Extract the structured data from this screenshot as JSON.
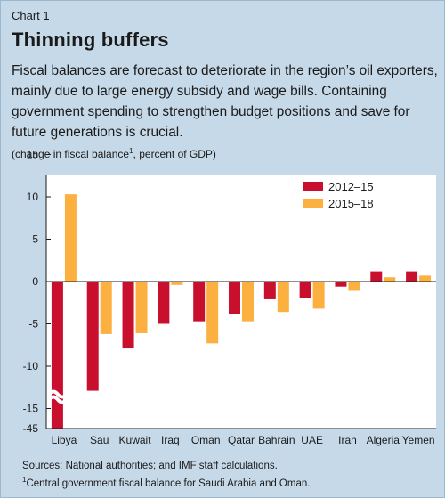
{
  "label": "Chart 1",
  "title": "Thinning buffers",
  "subtitle": "Fiscal balances are forecast to deteriorate in the region’s oil exporters, mainly due to large energy subsidy and wage bills. Containing government spending to strengthen budget positions and save for future generations is crucial.",
  "unit_note": {
    "before": "(change in fiscal balance",
    "marker": "1",
    "after": ", percent of GDP)"
  },
  "sources": "Sources: National authorities; and IMF staff calculations.",
  "footnote": {
    "marker": "1",
    "text": "Central government fiscal balance for Saudi Arabia and Oman."
  },
  "colors": {
    "background": "#c6d9e8",
    "plot_background": "#ffffff",
    "series_2012_15": "#c8102e",
    "series_2015_18": "#fbb040"
  },
  "chart_data": {
    "type": "bar",
    "categories": [
      "Libya",
      "Sau",
      "Kuwait",
      "Iraq",
      "Oman",
      "Qatar",
      "Bahrain",
      "UAE",
      "Iran",
      "Algeria",
      "Yemen"
    ],
    "series": [
      {
        "name": "2012–15",
        "values": [
          -45,
          -12.9,
          -7.9,
          -5.0,
          -4.7,
          -3.8,
          -2.1,
          -2.0,
          -0.6,
          1.2,
          1.2
        ]
      },
      {
        "name": "2015–18",
        "values": [
          10.3,
          -6.2,
          -6.1,
          -0.4,
          -7.3,
          -4.7,
          -3.6,
          -3.2,
          -1.1,
          0.5,
          0.7
        ]
      }
    ],
    "yticks": [
      "15",
      "10",
      "5",
      "0",
      "-5",
      "-10",
      "-15",
      "-45"
    ],
    "ylim": [
      -45,
      15
    ],
    "axis_break": {
      "from": -45,
      "to": -15
    },
    "legend_position": "top-right",
    "grid": false
  }
}
